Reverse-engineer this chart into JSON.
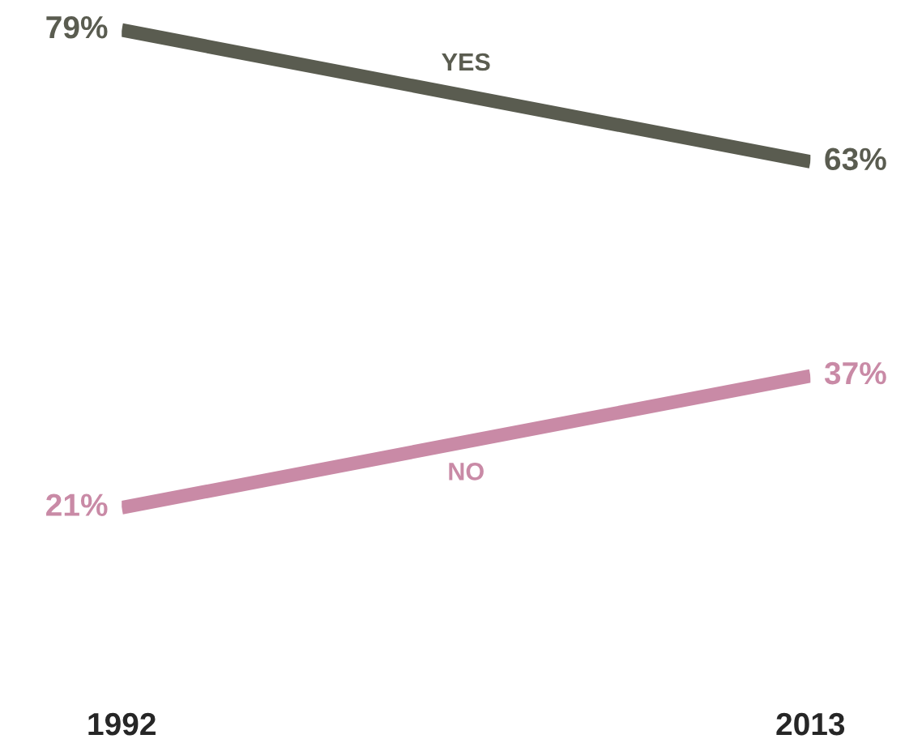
{
  "chart_data": {
    "type": "line",
    "categories": [
      "1992",
      "2013"
    ],
    "series": [
      {
        "name": "YES",
        "color": "#5a5c50",
        "values": [
          79,
          63
        ],
        "value_labels": [
          "79%",
          "63%"
        ]
      },
      {
        "name": "NO",
        "color": "#c98aa6",
        "values": [
          21,
          37
        ],
        "value_labels": [
          "21%",
          "37%"
        ]
      }
    ],
    "grid": false,
    "legend": false,
    "tick_labels": "x",
    "marker": "none",
    "line_style": "solid"
  }
}
